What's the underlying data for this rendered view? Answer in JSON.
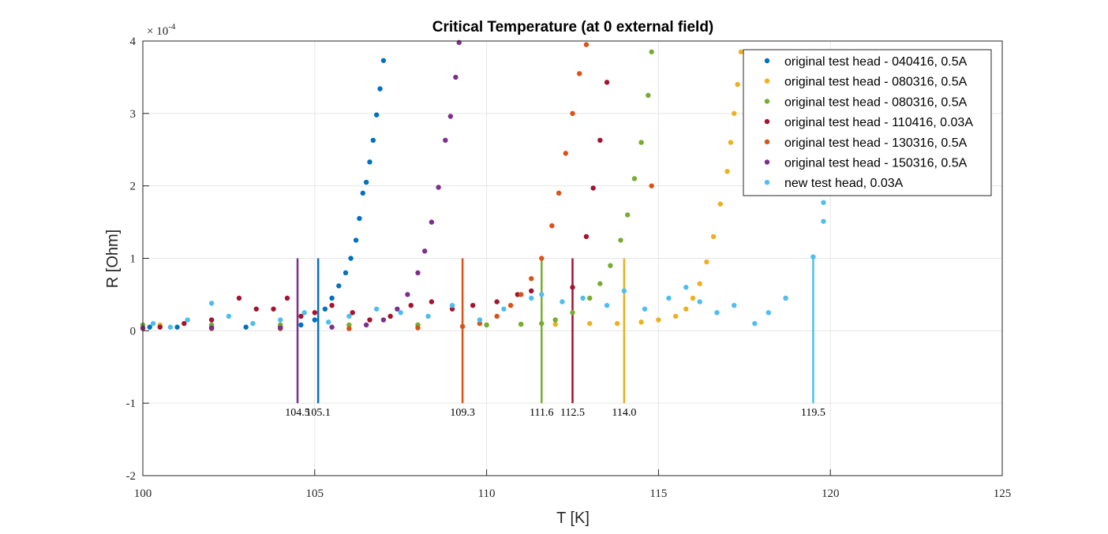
{
  "chart_data": {
    "type": "scatter",
    "title": "Critical Temperature (at 0 external field)",
    "xlabel": "T [K]",
    "ylabel": "R [Ohm]",
    "y_exponent_label": "× 10",
    "y_exponent_power": "-4",
    "xlim": [
      100,
      125
    ],
    "ylim": [
      -2,
      4
    ],
    "y_unit_scale": 0.0001,
    "xticks": [
      "100",
      "105",
      "110",
      "115",
      "120",
      "125"
    ],
    "yticks": [
      "-2",
      "-1",
      "0",
      "1",
      "2",
      "3",
      "4"
    ],
    "grid": true,
    "legend_position": "top-right",
    "series": [
      {
        "name": "original test head - 040416, 0.5A",
        "color": "#0072BD",
        "x": [
          100.2,
          101.0,
          102.0,
          103.0,
          104.0,
          104.6,
          105.0,
          105.3,
          105.5,
          105.7,
          105.9,
          106.05,
          106.2,
          106.3,
          106.4,
          106.5,
          106.6,
          106.7,
          106.8,
          106.9,
          107.0
        ],
        "y": [
          0.05,
          0.05,
          0.05,
          0.05,
          0.06,
          0.08,
          0.15,
          0.3,
          0.45,
          0.62,
          0.8,
          1.0,
          1.25,
          1.55,
          1.9,
          2.05,
          2.33,
          2.63,
          2.98,
          3.34,
          3.73
        ]
      },
      {
        "name": "original test head - 080316, 0.5A",
        "color": "#EDB120",
        "x": [
          100.5,
          102.0,
          104.0,
          106.0,
          108.0,
          110.0,
          111.0,
          112.0,
          113.0,
          113.8,
          114.5,
          115.0,
          115.5,
          115.8,
          116.0,
          116.2,
          116.4,
          116.6,
          116.8,
          117.0,
          117.1,
          117.2,
          117.3,
          117.4,
          118.7
        ],
        "y": [
          0.08,
          0.08,
          0.08,
          0.08,
          0.08,
          0.08,
          0.09,
          0.09,
          0.1,
          0.1,
          0.12,
          0.15,
          0.2,
          0.3,
          0.45,
          0.65,
          0.95,
          1.3,
          1.75,
          2.2,
          2.6,
          3.0,
          3.4,
          3.85,
          0.45
        ]
      },
      {
        "name": "original test head - 080316, 0.5A",
        "color": "#77AC30",
        "x": [
          100.0,
          102.0,
          104.0,
          106.0,
          108.0,
          110.0,
          111.0,
          111.6,
          112.0,
          112.5,
          113.0,
          113.3,
          113.6,
          113.9,
          114.1,
          114.3,
          114.5,
          114.7,
          114.8
        ],
        "y": [
          0.08,
          0.08,
          0.08,
          0.08,
          0.08,
          0.08,
          0.09,
          0.1,
          0.15,
          0.25,
          0.45,
          0.65,
          0.9,
          1.25,
          1.6,
          2.1,
          2.6,
          3.25,
          3.85
        ]
      },
      {
        "name": "original test head - 110416, 0.03A",
        "color": "#A2142F",
        "x": [
          100.5,
          101.2,
          102.0,
          102.8,
          103.3,
          103.8,
          104.2,
          104.6,
          105.0,
          105.5,
          106.1,
          106.6,
          107.2,
          107.8,
          108.4,
          109.0,
          109.6,
          110.3,
          110.9,
          111.3,
          112.5,
          112.9,
          113.1,
          113.3,
          113.5
        ],
        "y": [
          0.05,
          0.1,
          0.15,
          0.45,
          0.3,
          0.3,
          0.45,
          0.2,
          0.25,
          0.35,
          0.25,
          0.15,
          0.2,
          0.35,
          0.4,
          0.3,
          0.35,
          0.4,
          0.5,
          0.55,
          0.6,
          1.3,
          1.97,
          2.63,
          3.43
        ]
      },
      {
        "name": "original test head - 130316, 0.5A",
        "color": "#D95319",
        "x": [
          100.0,
          102.0,
          104.0,
          106.0,
          108.0,
          109.3,
          109.8,
          110.3,
          110.7,
          111.0,
          111.3,
          111.6,
          111.9,
          112.1,
          112.3,
          112.5,
          112.7,
          112.9,
          114.8
        ],
        "y": [
          0.03,
          0.03,
          0.03,
          0.03,
          0.04,
          0.06,
          0.1,
          0.2,
          0.35,
          0.5,
          0.72,
          1.0,
          1.45,
          1.9,
          2.45,
          3.0,
          3.55,
          3.95,
          2.0
        ]
      },
      {
        "name": "original test head - 150316, 0.5A",
        "color": "#7E2F8E",
        "x": [
          100.0,
          102.0,
          104.0,
          105.5,
          106.5,
          107.0,
          107.4,
          107.7,
          108.0,
          108.2,
          108.4,
          108.6,
          108.8,
          108.95,
          109.1,
          109.2
        ],
        "y": [
          0.04,
          0.04,
          0.04,
          0.05,
          0.08,
          0.15,
          0.3,
          0.5,
          0.8,
          1.1,
          1.5,
          1.98,
          2.63,
          2.96,
          3.5,
          3.98
        ]
      },
      {
        "name": "new test head, 0.03A",
        "color": "#4DBEEE",
        "x": [
          100.3,
          100.8,
          101.3,
          102.0,
          102.5,
          103.2,
          104.0,
          104.7,
          105.4,
          106.0,
          106.8,
          107.5,
          108.3,
          109.0,
          109.8,
          110.5,
          111.3,
          111.6,
          112.2,
          112.8,
          113.5,
          114.0,
          114.6,
          115.3,
          115.8,
          116.2,
          116.7,
          117.2,
          117.8,
          118.2,
          118.7,
          119.5,
          119.8,
          119.8
        ],
        "y": [
          0.1,
          0.05,
          0.15,
          0.38,
          0.2,
          0.1,
          0.15,
          0.25,
          0.12,
          0.2,
          0.3,
          0.25,
          0.2,
          0.35,
          0.15,
          0.3,
          0.45,
          0.5,
          0.4,
          0.45,
          0.35,
          0.55,
          0.3,
          0.45,
          0.6,
          0.4,
          0.25,
          0.35,
          0.1,
          0.25,
          0.45,
          1.02,
          1.51,
          1.77
        ]
      }
    ],
    "vertical_markers": [
      {
        "x": 104.5,
        "label": "104.5",
        "color": "#7E2F8E"
      },
      {
        "x": 105.1,
        "label": "105.1",
        "color": "#0072BD"
      },
      {
        "x": 109.3,
        "label": "109.3",
        "color": "#D95319"
      },
      {
        "x": 111.6,
        "label": "111.6",
        "color": "#77AC30"
      },
      {
        "x": 112.5,
        "label": "112.5",
        "color": "#A2142F"
      },
      {
        "x": 114.0,
        "label": "114.0",
        "color": "#EDB120"
      },
      {
        "x": 119.5,
        "label": "119.5",
        "color": "#4DBEEE"
      }
    ],
    "marker_range": [
      -1,
      1
    ]
  }
}
